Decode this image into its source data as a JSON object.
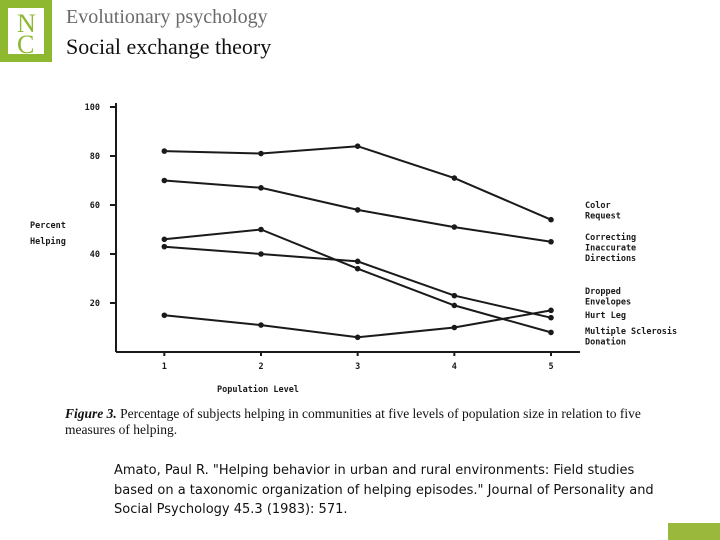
{
  "header": {
    "logo_letters": [
      "N",
      "C"
    ],
    "subtitle": "Evolutionary psychology",
    "title": "Social exchange theory"
  },
  "colors": {
    "accent": "#8db82f",
    "line": "#1a1a1a"
  },
  "chart_data": {
    "type": "line",
    "xlabel": "Population Level",
    "ylabel": [
      "Percent",
      "Helping"
    ],
    "x": [
      1,
      2,
      3,
      4,
      5
    ],
    "x_ticks": [
      "1",
      "2",
      "3",
      "4",
      "5"
    ],
    "y_ticks": [
      "20",
      "40",
      "60",
      "80",
      "100"
    ],
    "xlim": [
      0.5,
      5.3
    ],
    "ylim": [
      0,
      100
    ],
    "grid": false,
    "legend_placement": "right",
    "series": [
      {
        "name": [
          "Color",
          "Request"
        ],
        "values": [
          82,
          81,
          84,
          71,
          54
        ]
      },
      {
        "name": [
          "Correcting",
          "Inaccurate",
          "Directions"
        ],
        "values": [
          70,
          67,
          58,
          51,
          45
        ]
      },
      {
        "name": [
          "Dropped",
          "Envelopes"
        ],
        "values": [
          43,
          40,
          37,
          23,
          14
        ]
      },
      {
        "name": [
          "Hurt Leg"
        ],
        "values": [
          46,
          50,
          34,
          19,
          8
        ]
      },
      {
        "name": [
          "Multiple Sclerosis",
          "Donation"
        ],
        "values": [
          15,
          11,
          6,
          10,
          17
        ]
      }
    ]
  },
  "caption": {
    "figure_label": "Figure 3.",
    "text": "Percentage of subjects helping in communities at five levels of population size in relation to five measures of helping."
  },
  "citation": "Amato, Paul R. \"Helping behavior in urban and rural environments: Field studies based on a taxonomic organization of helping episodes.\" Journal of Personality and Social Psychology 45.3 (1983): 571."
}
